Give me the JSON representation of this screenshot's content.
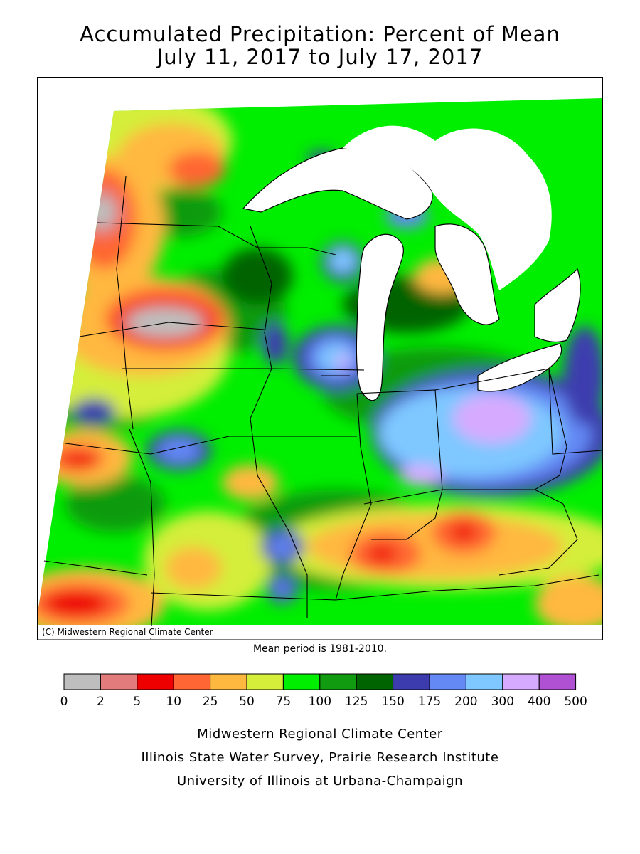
{
  "title": {
    "line1": "Accumulated Precipitation: Percent of Mean",
    "line2": "July 11, 2017 to July 17, 2017"
  },
  "map": {
    "copyright": "(C) Midwestern Regional Climate Center",
    "water_color": "#ffffff",
    "border_color": "#000000"
  },
  "note": "Mean period is 1981-2010.",
  "legend": {
    "colors": [
      "#bebebe",
      "#e27c7c",
      "#ee0000",
      "#ff6633",
      "#ffb83f",
      "#d4ee3a",
      "#00ee00",
      "#119b11",
      "#006400",
      "#3c3caf",
      "#6489f5",
      "#7ec8ff",
      "#d6aaff",
      "#b050d2"
    ],
    "ticks": [
      "0",
      "2",
      "5",
      "10",
      "25",
      "50",
      "75",
      "100",
      "125",
      "150",
      "175",
      "200",
      "300",
      "400",
      "500"
    ]
  },
  "footer": {
    "line1": "Midwestern Regional Climate Center",
    "line2": "Illinois State Water Survey, Prairie Research Institute",
    "line3": "University of Illinois at Urbana-Champaign"
  }
}
